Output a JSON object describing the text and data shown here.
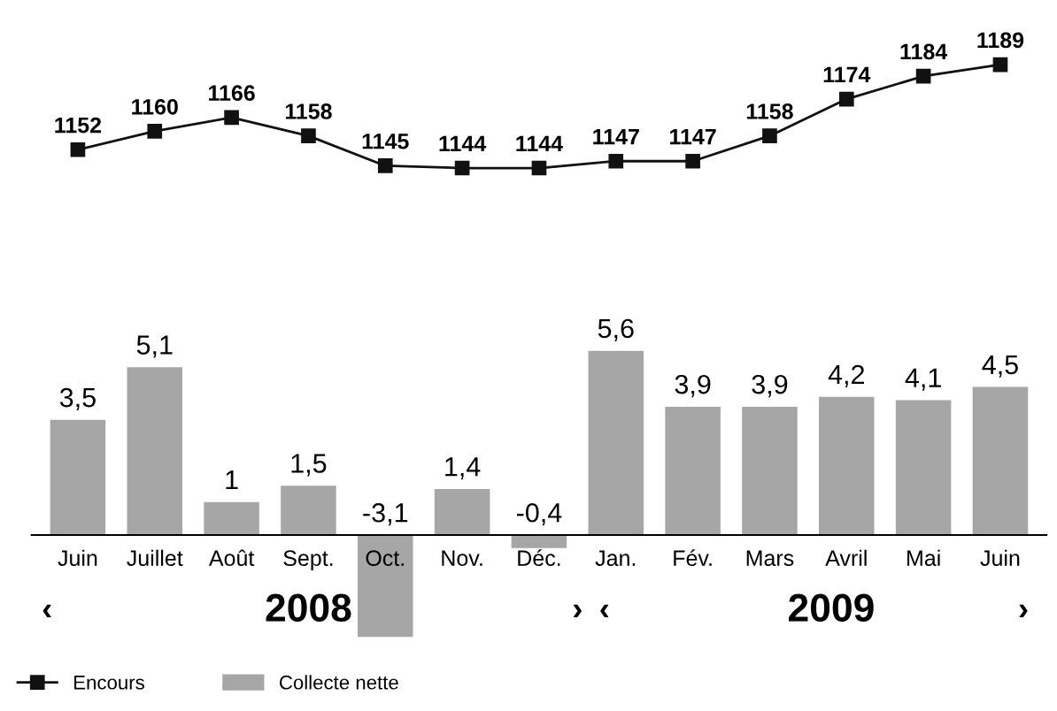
{
  "chart_data": [
    {
      "type": "line",
      "categories": [
        null,
        null,
        null,
        null,
        null,
        null,
        null,
        null,
        null,
        null,
        null,
        null,
        null
      ],
      "tick_labels": false,
      "data_labels": true,
      "marker": "square",
      "series": [
        {
          "name": "Encours",
          "color": "#111111",
          "values": [
            1152,
            1160,
            1166,
            1158,
            1145,
            1144,
            1144,
            1147,
            1147,
            1158,
            1174,
            1184,
            1189
          ]
        }
      ]
    },
    {
      "type": "bar",
      "categories": [
        "Juin",
        "Juillet",
        "Août",
        "Sept.",
        "Oct.",
        "Nov.",
        "Déc.",
        "Jan.",
        "Fév.",
        "Mars",
        "Avril",
        "Mai",
        "Juin"
      ],
      "tick_labels": "x",
      "legend": "bottom left",
      "series": [
        {
          "name": "Collecte nette",
          "color": "#a6a6a6",
          "values": [
            3.5,
            5.1,
            1,
            1.5,
            -3.1,
            1.4,
            -0.4,
            5.6,
            3.9,
            3.9,
            4.2,
            4.1,
            4.5
          ],
          "value_labels": [
            "3,5",
            "5,1",
            "1",
            "1,5",
            "-3,1",
            "1,4",
            "-0,4",
            "5,6",
            "3,9",
            "3,9",
            "4,2",
            "4,1",
            "4,5"
          ]
        }
      ],
      "annotations": [
        "‹",
        "2008",
        "›",
        "‹",
        "2009",
        "›"
      ]
    }
  ]
}
